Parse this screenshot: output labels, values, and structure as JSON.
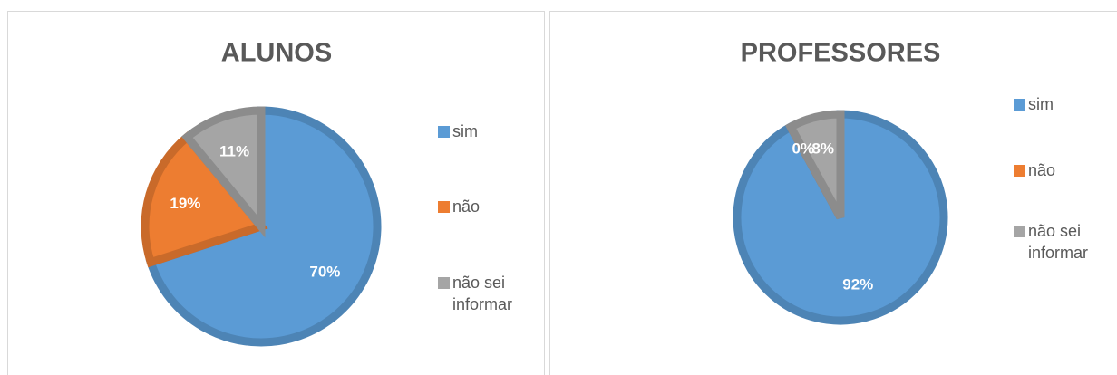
{
  "chart_data": [
    {
      "type": "pie",
      "title": "ALUNOS",
      "categories": [
        "sim",
        "não",
        "não sei informar"
      ],
      "values": [
        70,
        19,
        11
      ],
      "value_labels": [
        "70%",
        "19%",
        "11%"
      ],
      "colors": [
        "#5b9bd5",
        "#ed7d31",
        "#a5a5a5"
      ],
      "legend": "right"
    },
    {
      "type": "pie",
      "title": "PROFESSORES",
      "categories": [
        "sim",
        "não",
        "não sei informar"
      ],
      "values": [
        92,
        0,
        8
      ],
      "value_labels": [
        "92%",
        "0%",
        "8%"
      ],
      "colors": [
        "#5b9bd5",
        "#ed7d31",
        "#a5a5a5"
      ],
      "legend": "right"
    }
  ]
}
